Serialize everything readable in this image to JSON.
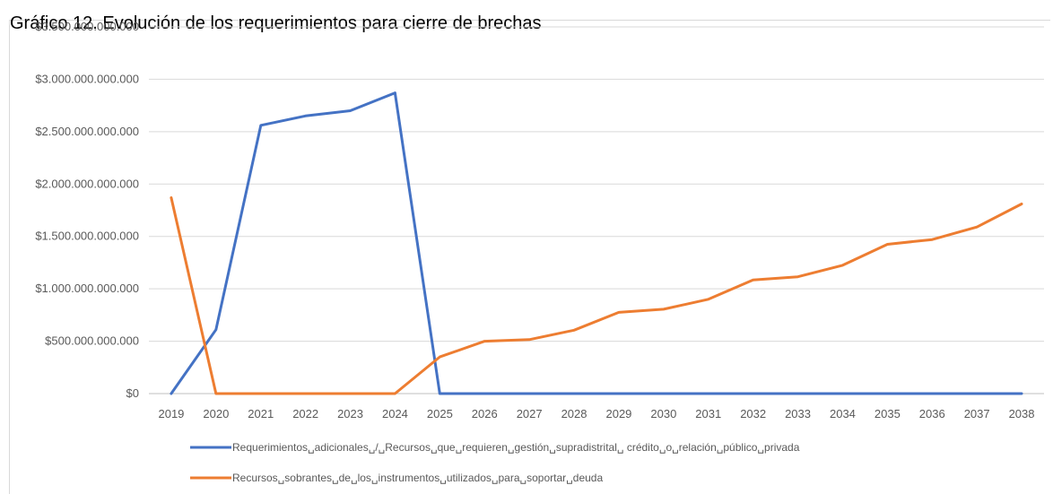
{
  "chart_data": {
    "type": "line",
    "title": "Gráfico 12. Evolución de los requerimientos para cierre de brechas",
    "xlabel": "",
    "ylabel": "",
    "categories": [
      "2019",
      "2020",
      "2021",
      "2022",
      "2023",
      "2024",
      "2025",
      "2026",
      "2027",
      "2028",
      "2029",
      "2030",
      "2031",
      "2032",
      "2033",
      "2034",
      "2035",
      "2036",
      "2037",
      "2038"
    ],
    "ylim": [
      0,
      3500000000000
    ],
    "yticks": [
      0,
      500000000000,
      1000000000000,
      1500000000000,
      2000000000000,
      2500000000000,
      3000000000000,
      3500000000000
    ],
    "ytick_labels": [
      "$0",
      "$500.000.000.000",
      "$1.000.000.000.000",
      "$1.500.000.000.000",
      "$2.000.000.000.000",
      "$2.500.000.000.000",
      "$3.000.000.000.000",
      "$3.500.000.000.000"
    ],
    "grid": true,
    "legend_position": "bottom",
    "series": [
      {
        "name": "Requerimientos␣adicionales␣/␣Recursos␣que␣requieren␣gestión␣supradistrital␣ crédito␣o␣relación␣público␣privada",
        "color": "#4472c4",
        "values": [
          0,
          610000000000,
          2560000000000,
          2650000000000,
          2700000000000,
          2870000000000,
          0,
          0,
          0,
          0,
          0,
          0,
          0,
          0,
          0,
          0,
          0,
          0,
          0,
          0
        ]
      },
      {
        "name": "Recursos␣sobrantes␣de␣los␣instrumentos␣utilizados␣para␣soportar␣deuda",
        "color": "#ed7d31",
        "values": [
          1870000000000,
          0,
          0,
          0,
          0,
          0,
          350000000000,
          500000000000,
          515000000000,
          605000000000,
          775000000000,
          805000000000,
          900000000000,
          1085000000000,
          1115000000000,
          1225000000000,
          1425000000000,
          1470000000000,
          1590000000000,
          1810000000000
        ]
      }
    ]
  }
}
